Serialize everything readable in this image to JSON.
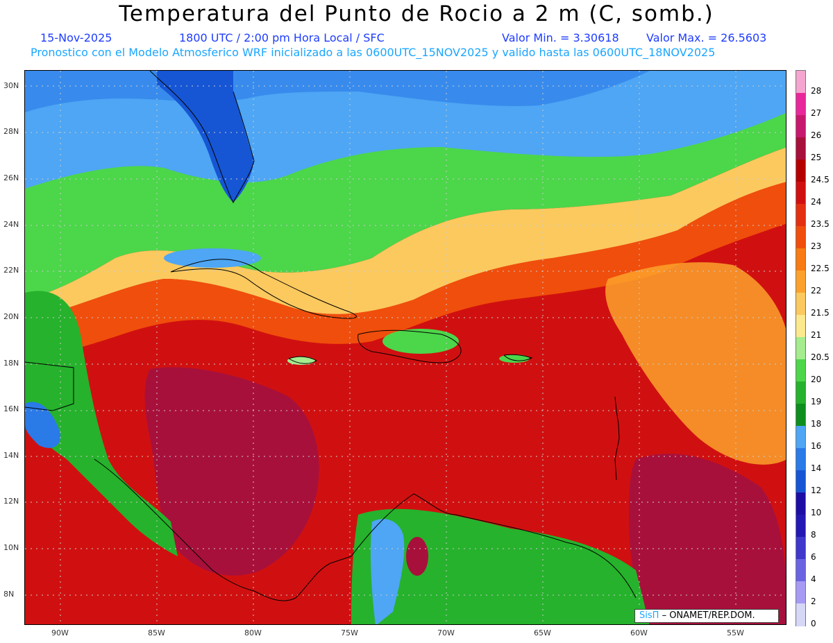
{
  "title": "Temperatura del Punto de Rocio a 2 m (C, somb.)",
  "date": "15-Nov-2025",
  "time_info": "1800 UTC / 2:00 pm Hora Local / SFC",
  "min_value": "Valor Min. = 3.30618",
  "max_value": "Valor Max. = 26.5603",
  "model_info": "Pronostico con el Modelo Atmosferico WRF inicializado a las 0600UTC_15NOV2025 y valido hasta las  0600UTC_18NOV2025",
  "lat_labels": [
    "30N",
    "28N",
    "26N",
    "24N",
    "22N",
    "20N",
    "18N",
    "16N",
    "14N",
    "12N",
    "10N",
    "8N"
  ],
  "lon_labels": [
    "90W",
    "85W",
    "80W",
    "75W",
    "70W",
    "65W",
    "60W",
    "55W"
  ],
  "colorbar": {
    "labels": [
      "28",
      "27",
      "26",
      "25",
      "24.5",
      "24",
      "23.5",
      "23",
      "22.5",
      "22",
      "21.5",
      "21",
      "20.5",
      "20",
      "19",
      "18",
      "16",
      "14",
      "12",
      "10",
      "8",
      "6",
      "4",
      "2",
      "0"
    ],
    "colors": [
      "#f4a6d0",
      "#e8289a",
      "#c8186e",
      "#a8103c",
      "#b50000",
      "#d01010",
      "#e23010",
      "#f04e0c",
      "#f87b14",
      "#fca22c",
      "#fbc95e",
      "#fce98e",
      "#a4ec8e",
      "#4cd64a",
      "#26b22c",
      "#0e8e1e",
      "#4ea6f4",
      "#2a7ae8",
      "#1656d4",
      "#1c0ea4",
      "#2418b4",
      "#3e38cc",
      "#6a64e2",
      "#a69af4",
      "#d6d6f6"
    ]
  },
  "credit": {
    "brand": "SisΠ",
    "org": "– ONAMET/REP.DOM."
  }
}
